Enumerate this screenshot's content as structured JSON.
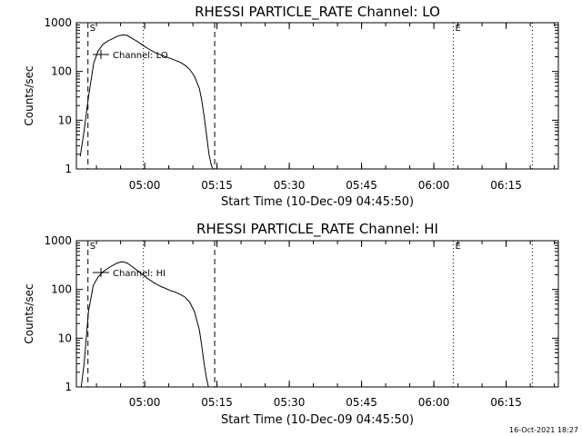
{
  "footer": {
    "timestamp": "16-Oct-2021 18:27"
  },
  "chart_data": [
    {
      "type": "line",
      "title": "RHESSI PARTICLE_RATE Channel: LO",
      "xlabel": "Start Time (10-Dec-09 04:45:50)",
      "ylabel": "Counts/sec",
      "yscale": "log",
      "ylim": [
        1,
        1000
      ],
      "xlim_minutes": [
        0,
        100
      ],
      "ytick_labels": [
        "1",
        "10",
        "100",
        "1000"
      ],
      "ytick_values": [
        1,
        10,
        100,
        1000
      ],
      "xtick_labels": [
        "05:00",
        "05:15",
        "05:30",
        "05:45",
        "06:00",
        "06:15"
      ],
      "xtick_values": [
        14.17,
        29.17,
        44.17,
        59.17,
        74.17,
        89.17
      ],
      "legend": "Channel: LO",
      "markers": [
        {
          "label": "S",
          "x": 2.4,
          "style": "dashed"
        },
        {
          "label": "",
          "x": 13.9,
          "style": "dotted"
        },
        {
          "label": "",
          "x": 28.7,
          "style": "dashed"
        },
        {
          "label": "E",
          "x": 78.2,
          "style": "dotted"
        },
        {
          "label": "",
          "x": 94.6,
          "style": "dotted"
        }
      ],
      "series": [
        {
          "name": "Channel: LO",
          "x": [
            0.8,
            1.6,
            2.5,
            3.6,
            4.5,
            5.5,
            6.5,
            7.5,
            8.5,
            9.5,
            10.5,
            11.5,
            12.5,
            13.5,
            14.5,
            15.5,
            16.5,
            17.5,
            18.5,
            19.5,
            20.5,
            21.5,
            22.5,
            23.5,
            24.5,
            25.5,
            26.0,
            26.5,
            27.0,
            27.5,
            28.0,
            28.3
          ],
          "y": [
            1.8,
            6,
            30,
            150,
            260,
            360,
            420,
            470,
            530,
            560,
            550,
            480,
            420,
            360,
            310,
            270,
            240,
            220,
            200,
            185,
            170,
            155,
            135,
            110,
            80,
            45,
            26,
            12,
            5,
            2,
            1.2,
            1
          ]
        }
      ]
    },
    {
      "type": "line",
      "title": "RHESSI PARTICLE_RATE Channel: HI",
      "xlabel": "Start Time (10-Dec-09 04:45:50)",
      "ylabel": "Counts/sec",
      "yscale": "log",
      "ylim": [
        1,
        1000
      ],
      "xlim_minutes": [
        0,
        100
      ],
      "ytick_labels": [
        "1",
        "10",
        "100",
        "1000"
      ],
      "ytick_values": [
        1,
        10,
        100,
        1000
      ],
      "xtick_labels": [
        "05:00",
        "05:15",
        "05:30",
        "05:45",
        "06:00",
        "06:15"
      ],
      "xtick_values": [
        14.17,
        29.17,
        44.17,
        59.17,
        74.17,
        89.17
      ],
      "legend": "Channel: HI",
      "markers": [
        {
          "label": "S",
          "x": 2.4,
          "style": "dashed"
        },
        {
          "label": "",
          "x": 13.9,
          "style": "dotted"
        },
        {
          "label": "",
          "x": 28.7,
          "style": "dashed"
        },
        {
          "label": "E",
          "x": 78.2,
          "style": "dotted"
        },
        {
          "label": "",
          "x": 94.6,
          "style": "dotted"
        }
      ],
      "series": [
        {
          "name": "Channel: HI",
          "x": [
            1.0,
            1.6,
            2.5,
            3.5,
            4.5,
            5.5,
            6.5,
            7.5,
            8.5,
            9.5,
            10.5,
            11.5,
            12.5,
            13.5,
            14.5,
            15.5,
            16.5,
            17.5,
            18.5,
            19.5,
            20.5,
            21.5,
            22.5,
            23.5,
            24.5,
            25.5,
            26.0,
            26.5,
            27.0,
            27.4
          ],
          "y": [
            1,
            3,
            35,
            120,
            180,
            230,
            270,
            310,
            350,
            370,
            350,
            300,
            250,
            210,
            175,
            150,
            130,
            115,
            105,
            95,
            88,
            80,
            70,
            55,
            35,
            15,
            7,
            3,
            1.5,
            1
          ]
        }
      ]
    }
  ]
}
